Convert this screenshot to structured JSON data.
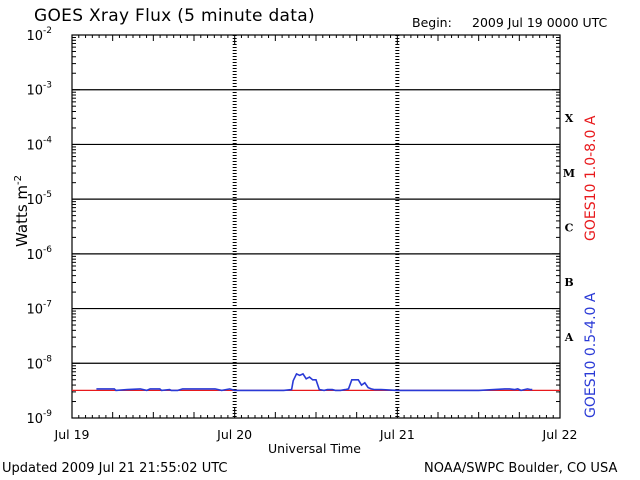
{
  "header": {
    "title": "GOES Xray Flux (5 minute data)",
    "begin_label": "Begin:",
    "begin_value": "2009 Jul 19 0000 UTC"
  },
  "footer": {
    "updated": "Updated 2009 Jul 21 21:55:02 UTC",
    "credit": "NOAA/SWPC Boulder, CO USA"
  },
  "chart_data": {
    "type": "line",
    "title": "GOES Xray Flux (5 minute data)",
    "xlabel": "Universal Time",
    "ylabel": "Watts m",
    "ylabel_sup": "-2",
    "yscale": "log",
    "ylim": [
      1e-09,
      0.01
    ],
    "xlim_days": [
      0,
      3
    ],
    "grid": true,
    "x_tick_labels": [
      "Jul 19",
      "Jul 20",
      "Jul 21",
      "Jul 22"
    ],
    "y_tick_labels": [
      {
        "base": "10",
        "exp": "-9"
      },
      {
        "base": "10",
        "exp": "-8"
      },
      {
        "base": "10",
        "exp": "-7"
      },
      {
        "base": "10",
        "exp": "-6"
      },
      {
        "base": "10",
        "exp": "-5"
      },
      {
        "base": "10",
        "exp": "-4"
      },
      {
        "base": "10",
        "exp": "-3"
      },
      {
        "base": "10",
        "exp": "-2"
      }
    ],
    "flare_classes": [
      "A",
      "B",
      "C",
      "M",
      "X"
    ],
    "legend_placement": "right, vertical",
    "series": [
      {
        "name": "GOES10 1.0-8.0 A",
        "color": "#e8191c",
        "x": [
          0,
          3
        ],
        "y": [
          3.2e-09,
          3.2e-09
        ]
      },
      {
        "name": "GOES10 0.5-4.0 A",
        "color": "#2a3ad6",
        "x": [
          0.15,
          0.26,
          0.27,
          0.34,
          0.42,
          0.46,
          0.48,
          0.54,
          0.55,
          0.6,
          0.61,
          0.65,
          0.68,
          0.7,
          0.72,
          0.74,
          0.75,
          0.78,
          0.8,
          0.82,
          0.86,
          0.88,
          0.92,
          0.97,
          1.0,
          1.05,
          1.1,
          1.2,
          1.3,
          1.35,
          1.36,
          1.38,
          1.4,
          1.42,
          1.44,
          1.46,
          1.48,
          1.5,
          1.52,
          1.55,
          1.57,
          1.6,
          1.62,
          1.65,
          1.68,
          1.7,
          1.72,
          1.74,
          1.76,
          1.78,
          1.8,
          1.82,
          1.84,
          1.86,
          1.88,
          1.9,
          2.0,
          2.5,
          2.66,
          2.69,
          2.72,
          2.74,
          2.76,
          2.8,
          2.82,
          2.83
        ],
        "y": [
          3.4e-09,
          3.4e-09,
          3.2e-09,
          3.3e-09,
          3.4e-09,
          3.2e-09,
          3.4e-09,
          3.4e-09,
          3.2e-09,
          3.3e-09,
          3.2e-09,
          3.2e-09,
          3.4e-09,
          3.4e-09,
          3.4e-09,
          3.4e-09,
          3.4e-09,
          3.4e-09,
          3.4e-09,
          3.4e-09,
          3.4e-09,
          3.4e-09,
          3.2e-09,
          3.4e-09,
          3.2e-09,
          3.2e-09,
          3.2e-09,
          3.2e-09,
          3.2e-09,
          3.3e-09,
          4.8e-09,
          6.4e-09,
          6e-09,
          6.4e-09,
          5.2e-09,
          5.6e-09,
          5e-09,
          5e-09,
          3.3e-09,
          3.2e-09,
          3.3e-09,
          3.3e-09,
          3.2e-09,
          3.2e-09,
          3.3e-09,
          3.4e-09,
          5e-09,
          5e-09,
          5e-09,
          4e-09,
          4.4e-09,
          3.6e-09,
          3.4e-09,
          3.3e-09,
          3.3e-09,
          3.3e-09,
          3.2e-09,
          3.2e-09,
          3.4e-09,
          3.4e-09,
          3.3e-09,
          3.4e-09,
          3.2e-09,
          3.4e-09,
          3.3e-09,
          3.3e-09
        ]
      }
    ]
  }
}
